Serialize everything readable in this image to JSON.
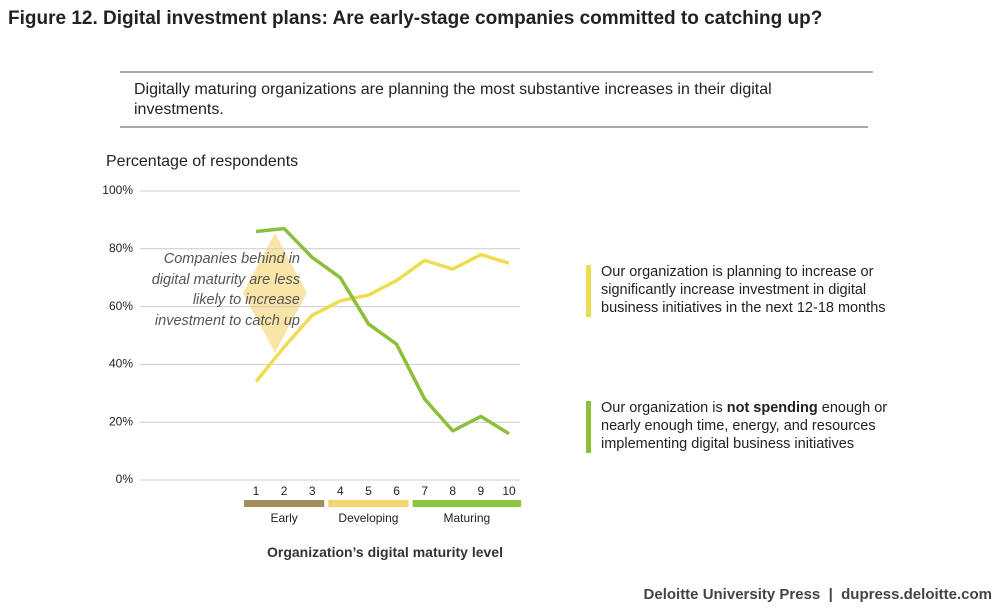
{
  "chart_data": {
    "type": "line",
    "title": "Figure 12. Digital investment plans: Are early-stage companies committed to catching up?",
    "subtitle": "Digitally maturing organizations are planning the most substantive increases in their digital investments.",
    "y_label": "Percentage of respondents",
    "x_label": "Organization’s digital maturity level",
    "annotation": "Companies behind in digital maturity are less likely to increase investment to catch up",
    "source": "Deloitte University Press  |  dupress.deloitte.com",
    "x": [
      1,
      2,
      3,
      4,
      5,
      6,
      7,
      8,
      9,
      10
    ],
    "xlim": [
      1,
      10
    ],
    "xticks": [
      1,
      2,
      3,
      4,
      5,
      6,
      7,
      8,
      9,
      10
    ],
    "groups": [
      {
        "name": "Early",
        "color": "#a38e5c",
        "from": 1,
        "to": 3
      },
      {
        "name": "Developing",
        "color": "#f5d36e",
        "from": 4,
        "to": 6
      },
      {
        "name": "Maturing",
        "color": "#8cc63f",
        "from": 7,
        "to": 10
      }
    ],
    "ylim": [
      0,
      100
    ],
    "yticks": [
      {
        "value": 0,
        "label": "0%"
      },
      {
        "value": 20,
        "label": "20%"
      },
      {
        "value": 40,
        "label": "40%"
      },
      {
        "value": 60,
        "label": "60%"
      },
      {
        "value": 80,
        "label": "80%"
      },
      {
        "value": 100,
        "label": "100%"
      }
    ],
    "grid": true,
    "series": [
      {
        "name": "Our organization is planning to increase or significantly increase investment in digital business initiatives in the next 12-18 months",
        "color": "#f0dc50",
        "values": [
          34,
          46,
          57,
          62,
          64,
          69,
          76,
          73,
          78,
          75
        ]
      },
      {
        "name": "Our organization is not spending enough or nearly enough time, energy, and resources implementing digital business initiatives",
        "name_bold": "not spending",
        "color": "#8cbf3a",
        "values": [
          86,
          87,
          77,
          70,
          54,
          47,
          28,
          17,
          22,
          16
        ]
      }
    ]
  }
}
